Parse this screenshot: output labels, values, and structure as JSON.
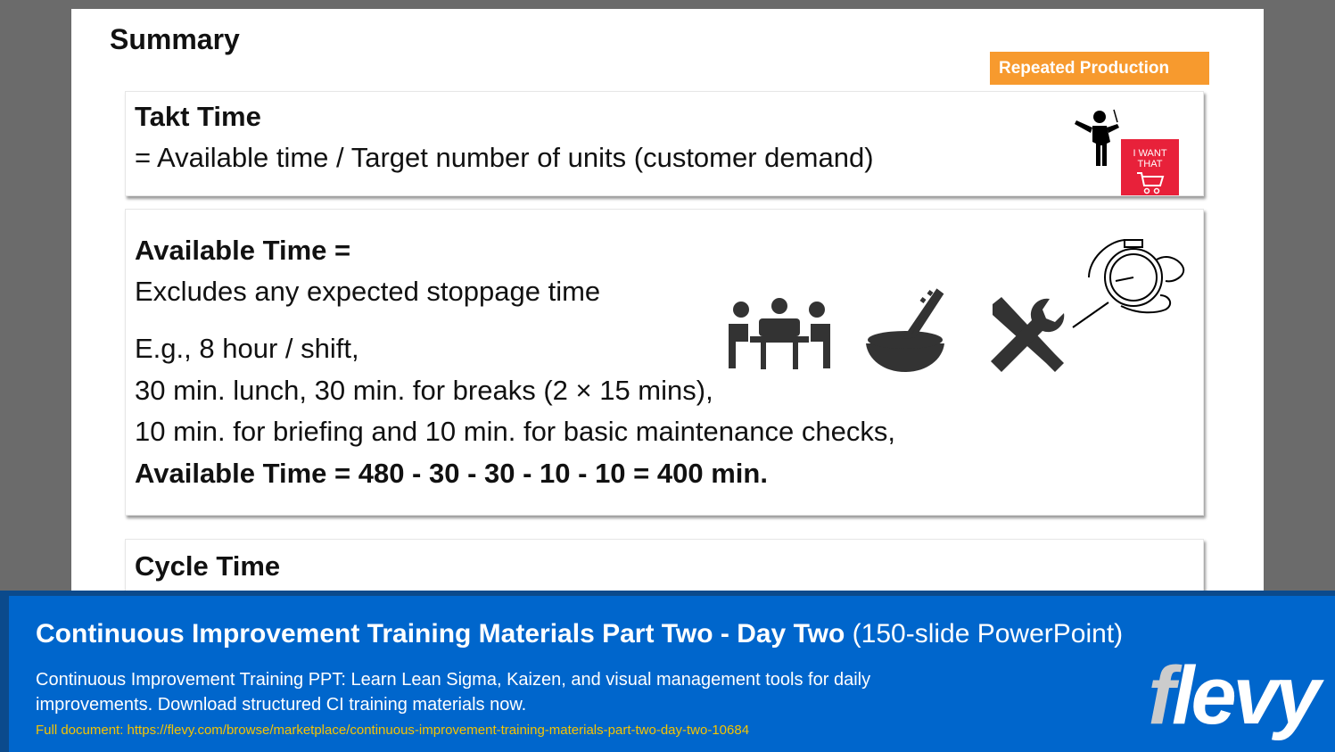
{
  "slide": {
    "title": "Summary",
    "tag": "Repeated Production",
    "takt": {
      "heading": "Takt Time",
      "formula": "= Available time / Target number of units (customer demand)",
      "badge": "I WANT THAT"
    },
    "available": {
      "heading": "Available Time =",
      "line1": "Excludes any expected stoppage time",
      "line2": "E.g., 8 hour / shift,",
      "line3": "30 min. lunch, 30 min. for breaks (2 × 15 mins),",
      "line4": "10 min. for briefing and 10 min. for basic maintenance checks,",
      "result": "Available Time = 480 - 30 - 30 - 10 - 10 = 400 min."
    },
    "cycle": {
      "heading": "Cycle Time"
    }
  },
  "banner": {
    "title": "Continuous Improvement Training Materials Part Two - Day Two",
    "title_suffix": "(150-slide PowerPoint)",
    "description": "Continuous Improvement Training PPT: Learn Lean Sigma, Kaizen, and visual management tools for daily improvements. Download structured CI training materials now.",
    "link": "Full document: https://flevy.com/browse/marketplace/continuous-improvement-training-materials-part-two-day-two-10684",
    "logo": "flevy"
  },
  "colors": {
    "tag": "#f79a2e",
    "banner": "#0066cc",
    "badge": "#e8213a",
    "link": "#f5c400"
  }
}
